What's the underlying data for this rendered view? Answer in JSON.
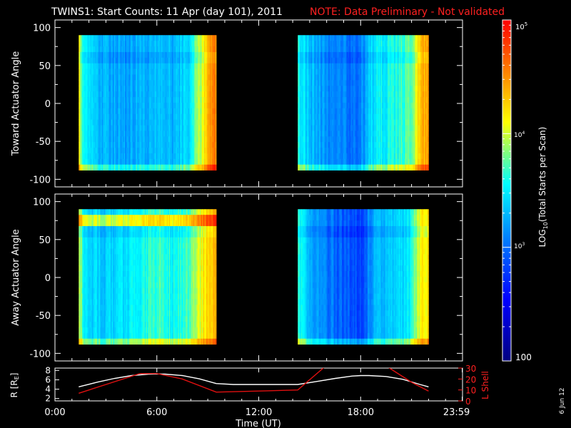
{
  "title": "TWINS1: Start Counts: 11 Apr (day 101), 2011",
  "note": "NOTE: Data Preliminary - Not validated",
  "date_stamp": "6 Jun 12",
  "colors": {
    "background": "#000000",
    "axes": "#ffffff",
    "note": "#ff0000",
    "r_line": "#ffffff",
    "l_line": "#e01010",
    "colormap": [
      "#000080",
      "#0000ff",
      "#0080ff",
      "#00ffff",
      "#ffff00",
      "#ff8000",
      "#ff0000"
    ]
  },
  "chart_data": [
    {
      "type": "heatmap",
      "name": "toward",
      "ylabel": "Toward Actuator Angle",
      "yticks": [
        "100",
        "50",
        "0",
        "-50",
        "-100"
      ],
      "ylim": [
        -110,
        110
      ],
      "xlim_hours": [
        0,
        24
      ],
      "data_windows_hours": [
        [
          1.4,
          9.5
        ],
        [
          14.3,
          22.0
        ]
      ],
      "angle_range": [
        -88,
        90
      ],
      "color_scale": "log",
      "crange": [
        100,
        100000
      ],
      "profile_t_hours": [
        1.4,
        1.6,
        2.0,
        3.0,
        4.0,
        5.0,
        6.0,
        7.0,
        7.8,
        8.5,
        9.0,
        9.5,
        14.3,
        15.0,
        16.0,
        17.0,
        18.0,
        18.6,
        19.0,
        20.0,
        21.0,
        21.5,
        22.0
      ],
      "profile_log_counts": [
        4.1,
        3.55,
        3.3,
        3.2,
        3.15,
        3.2,
        3.25,
        3.2,
        3.35,
        3.8,
        4.3,
        4.5,
        3.5,
        3.25,
        3.05,
        3.0,
        2.95,
        3.35,
        3.45,
        3.5,
        3.7,
        4.2,
        4.4
      ]
    },
    {
      "type": "heatmap",
      "name": "away",
      "ylabel": "Away Actuator Angle",
      "yticks": [
        "100",
        "50",
        "0",
        "-50",
        "-100"
      ],
      "ylim": [
        -110,
        110
      ],
      "xlim_hours": [
        0,
        24
      ],
      "data_windows_hours": [
        [
          1.4,
          9.5
        ],
        [
          14.3,
          22.0
        ]
      ],
      "angle_range": [
        -88,
        90
      ],
      "band_angle": 75,
      "color_scale": "log",
      "crange": [
        100,
        100000
      ],
      "profile_t_hours": [
        1.4,
        1.6,
        2.0,
        3.0,
        4.0,
        5.0,
        6.0,
        7.0,
        7.8,
        8.5,
        9.0,
        9.5,
        14.3,
        15.0,
        16.0,
        17.0,
        18.0,
        18.6,
        19.0,
        20.0,
        21.0,
        21.5,
        22.0
      ],
      "profile_log_counts": [
        4.0,
        3.6,
        3.35,
        3.3,
        3.4,
        3.5,
        3.6,
        3.5,
        3.6,
        3.9,
        4.2,
        4.3,
        3.6,
        3.2,
        3.0,
        2.85,
        2.8,
        3.1,
        3.2,
        3.3,
        3.5,
        4.0,
        4.1
      ]
    },
    {
      "type": "line",
      "name": "orbit",
      "xlabel": "Time (UT)",
      "xticks": [
        "0:00",
        "6:00",
        "12:00",
        "18:00",
        "23:59"
      ],
      "xtick_hours": [
        0,
        6,
        12,
        18,
        23.983
      ],
      "ylabel_left": "R [R_E]",
      "yticks_left": [
        "8",
        "6",
        "4",
        "2"
      ],
      "ylim_left": [
        1.5,
        8.5
      ],
      "ylabel_right": "L Shell",
      "yticks_right": [
        "30",
        "20",
        "10",
        "0"
      ],
      "ylim_right": [
        0,
        30
      ],
      "series": [
        {
          "name": "R",
          "axis": "left",
          "x": [
            1.4,
            2.5,
            3.5,
            4.5,
            5.5,
            6.0,
            6.5,
            7.5,
            8.5,
            9.5,
            10.5,
            12.0,
            14.3,
            15.5,
            16.5,
            17.5,
            18.0,
            18.5,
            19.5,
            20.5,
            21.5,
            22.0
          ],
          "y": [
            4.5,
            5.5,
            6.3,
            6.9,
            7.2,
            7.25,
            7.2,
            6.9,
            6.2,
            5.2,
            5.0,
            5.0,
            5.0,
            5.7,
            6.3,
            6.8,
            6.9,
            6.9,
            6.7,
            6.1,
            5.0,
            4.5
          ]
        },
        {
          "name": "L Shell",
          "axis": "right",
          "x": [
            1.4,
            3.0,
            5.0,
            6.0,
            7.5,
            9.5,
            12.0,
            14.3,
            15.8,
            16.3
          ],
          "y": [
            7,
            15,
            25,
            25,
            20,
            8,
            9,
            10,
            30,
            34
          ]
        },
        {
          "name": "L Shell",
          "axis": "right",
          "x": [
            19.3,
            20.0,
            21.0,
            22.0
          ],
          "y": [
            34,
            27,
            17,
            9
          ]
        }
      ]
    }
  ],
  "colorbar": {
    "label_prefix": "LOG",
    "label_sub": "10",
    "label_suffix": "(Total Starts per Scan)",
    "tick_top_base": "10",
    "tick_top_exp": "5",
    "tick_mid_base": "10",
    "tick_mid_exp": "4",
    "tick_low_base": "10",
    "tick_low_exp": "3",
    "tick_bottom": "100"
  }
}
